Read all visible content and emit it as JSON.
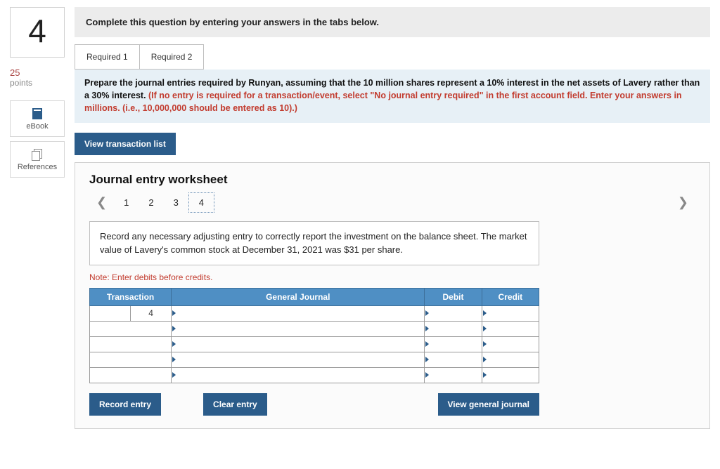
{
  "question": {
    "number": "4",
    "points_value": "25",
    "points_label": "points"
  },
  "tools": {
    "ebook": "eBook",
    "references": "References"
  },
  "header_instruction": "Complete this question by entering your answers in the tabs below.",
  "tabs": {
    "req1": "Required 1",
    "req2": "Required 2",
    "active": "req2"
  },
  "prompt": {
    "black": "Prepare the journal entries required by Runyan, assuming that the 10 million shares represent a 10% interest in the net assets of Lavery rather than a 30% interest. ",
    "red": "(If no entry is required for a transaction/event, select \"No journal entry required\" in the first account field. Enter your answers in millions. (i.e., 10,000,000 should be entered as 10).)"
  },
  "buttons": {
    "view_tx_list": "View transaction list",
    "record_entry": "Record entry",
    "clear_entry": "Clear entry",
    "view_general_journal": "View general journal"
  },
  "worksheet": {
    "title": "Journal entry worksheet",
    "steps": [
      "1",
      "2",
      "3",
      "4"
    ],
    "current_step": "4",
    "description": "Record any necessary adjusting entry to correctly report the investment on the balance sheet. The market value of Lavery's common stock at December 31, 2021 was $31 per share.",
    "note": "Note: Enter debits before credits.",
    "columns": {
      "transaction": "Transaction",
      "general_journal": "General Journal",
      "debit": "Debit",
      "credit": "Credit"
    },
    "transaction_number": "4",
    "row_count": 5
  },
  "colors": {
    "header_blue": "#4f8fc4",
    "button_blue": "#2b5c8a",
    "prompt_bg": "#e7f0f6",
    "instr_bg": "#ececec",
    "red_text": "#c23b2e"
  }
}
